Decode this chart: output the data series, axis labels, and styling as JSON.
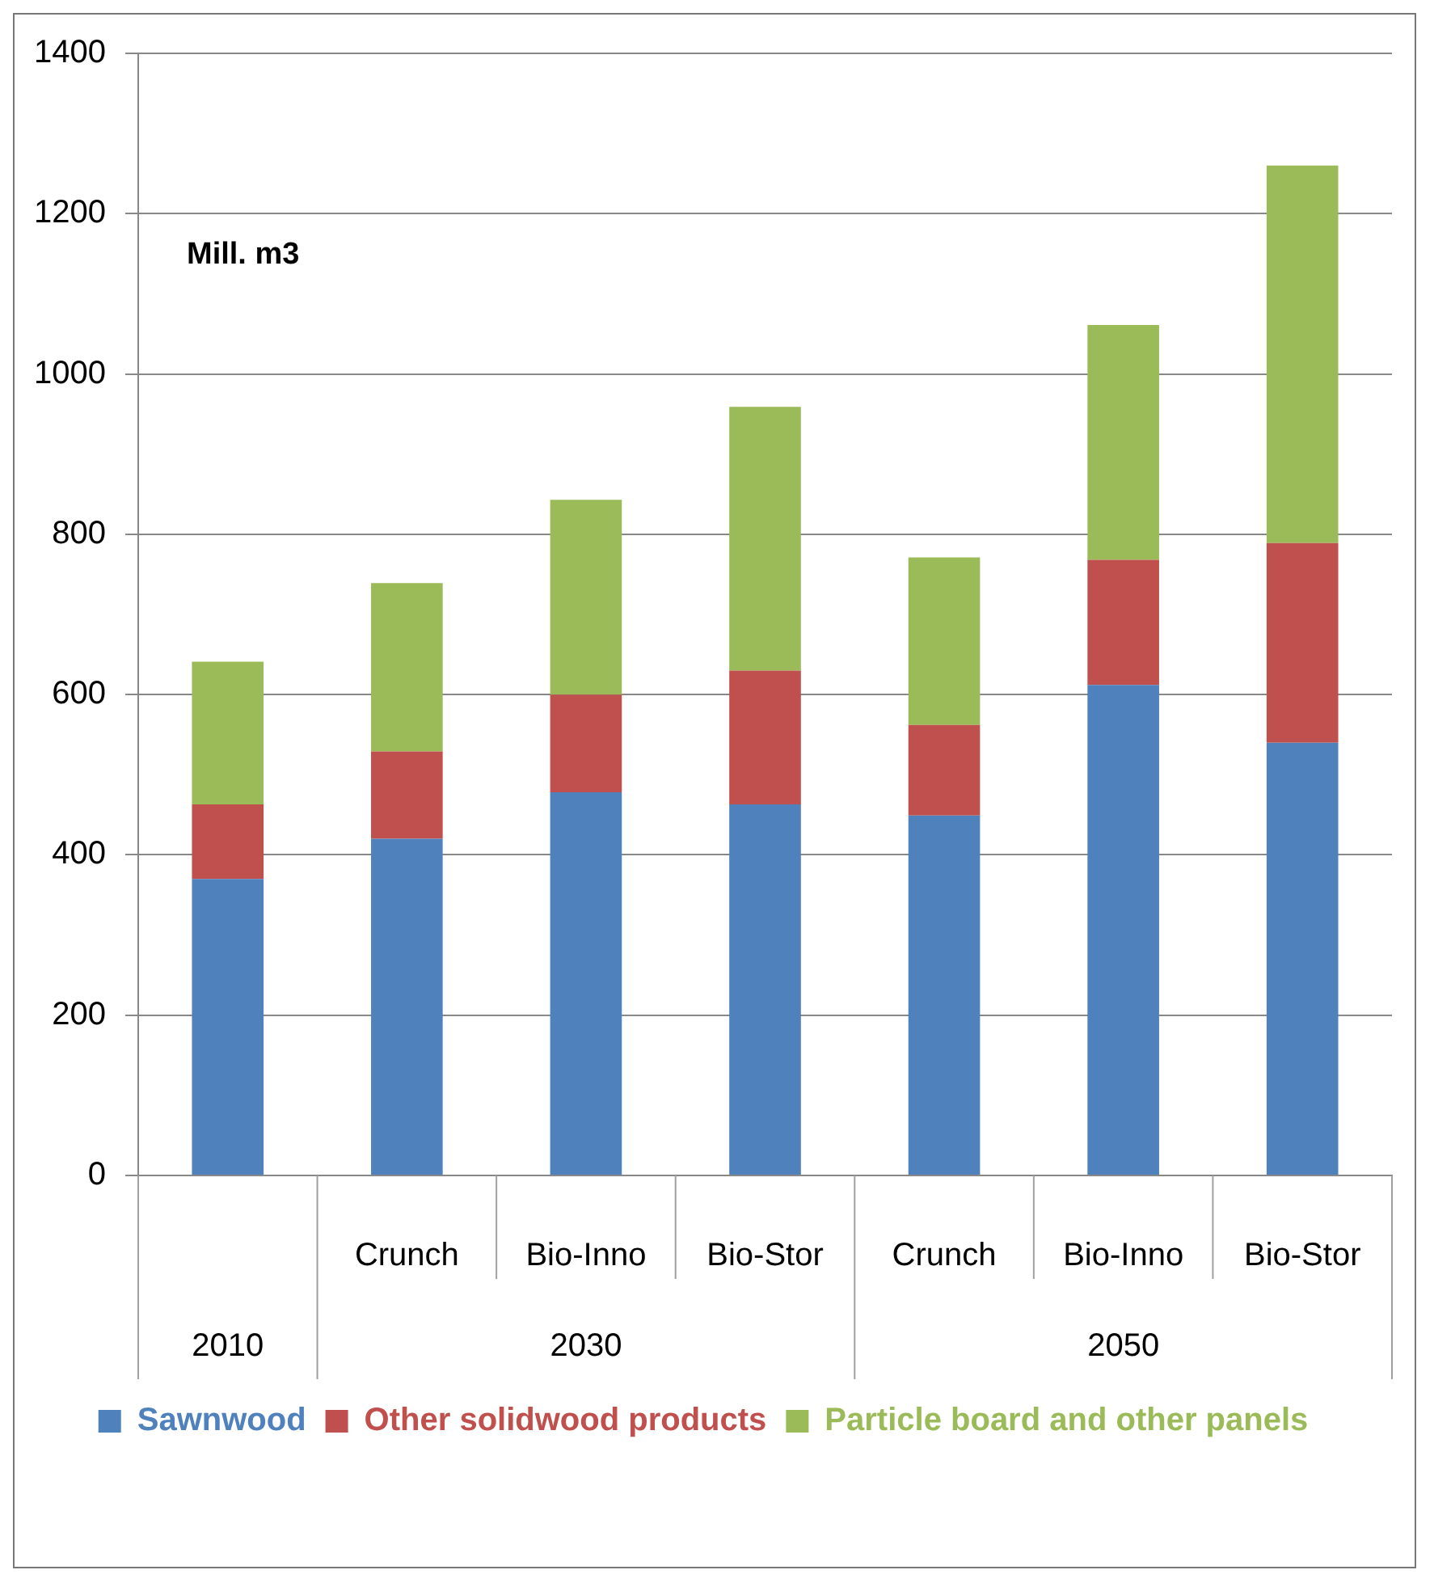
{
  "chart_data": {
    "type": "bar",
    "stacked": true,
    "ylabel": "Mill. m3",
    "categories": [
      null,
      "Crunch",
      "Bio-Inno",
      "Bio-Stor",
      "Crunch",
      "Bio-Inno",
      "Bio-Stor"
    ],
    "annotations": [
      "2010",
      "2030",
      "2050"
    ],
    "series": [
      {
        "name": "Sawnwood",
        "color": "#4f81bd",
        "values": [
          370,
          420,
          478,
          463,
          449,
          612,
          540
        ]
      },
      {
        "name": "Other solidwood products",
        "color": "#c0504d",
        "values": [
          93,
          109,
          122,
          167,
          113,
          156,
          249
        ]
      },
      {
        "name": "Particle board and other panels",
        "color": "#9bbb59",
        "values": [
          178,
          210,
          243,
          329,
          209,
          293,
          471
        ]
      }
    ],
    "ylim": [
      0,
      1400
    ],
    "yticks": [
      0,
      200,
      400,
      600,
      800,
      1000,
      1200,
      1400
    ],
    "grid": "y",
    "legend": "bottom"
  }
}
